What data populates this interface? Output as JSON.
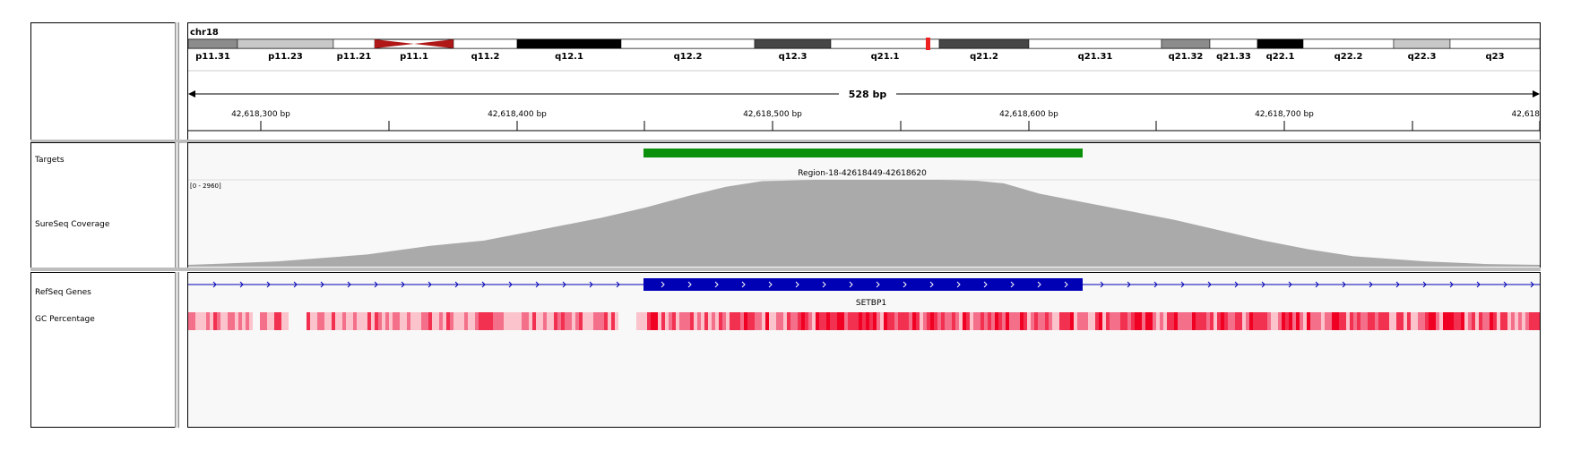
{
  "header": {
    "chromosome": "chr18",
    "span_label": "528 bp",
    "ruler_ticks": [
      {
        "label": "42,618,300 bp"
      },
      {
        "label": "42,618,400 bp"
      },
      {
        "label": "42,618,500 bp"
      },
      {
        "label": "42,618,600 bp"
      },
      {
        "label": "42,618,700 bp"
      },
      {
        "label": "42,618"
      }
    ]
  },
  "ideogram_bands": [
    {
      "name": "p11.31",
      "stain": "gpos50"
    },
    {
      "name": "p11.23",
      "stain": "gpos25"
    },
    {
      "name": "p11.21",
      "stain": "gneg"
    },
    {
      "name": "p11.1",
      "stain": "acen"
    },
    {
      "name": "q11.2",
      "stain": "gneg"
    },
    {
      "name": "q12.1",
      "stain": "gpos100"
    },
    {
      "name": "q12.2",
      "stain": "gneg"
    },
    {
      "name": "q12.3",
      "stain": "gpos75"
    },
    {
      "name": "q21.1",
      "stain": "gneg"
    },
    {
      "name": "q21.2",
      "stain": "gpos75"
    },
    {
      "name": "q21.31",
      "stain": "gneg"
    },
    {
      "name": "q21.32",
      "stain": "gpos50"
    },
    {
      "name": "q21.33",
      "stain": "gneg"
    },
    {
      "name": "q22.1",
      "stain": "gpos100"
    },
    {
      "name": "q22.2",
      "stain": "gneg"
    },
    {
      "name": "q22.3",
      "stain": "gpos25"
    },
    {
      "name": "q23",
      "stain": "gneg"
    }
  ],
  "tracks": {
    "targets_label": "Targets",
    "coverage_label": "SureSeq Coverage",
    "refseq_label": "RefSeq Genes",
    "gc_label": "GC Percentage",
    "coverage_range": "[0 - 2960]",
    "region_label": "Region-18-42618449-42618620",
    "gene_name": "SETBP1"
  },
  "colors": {
    "target_bar": "#0a900a",
    "coverage_fill": "#aaaaaa",
    "gene_blue": "#0000b4",
    "gc_red": "#f00022",
    "highlight_red": "#ee2020",
    "acen_red": "#b01818"
  }
}
